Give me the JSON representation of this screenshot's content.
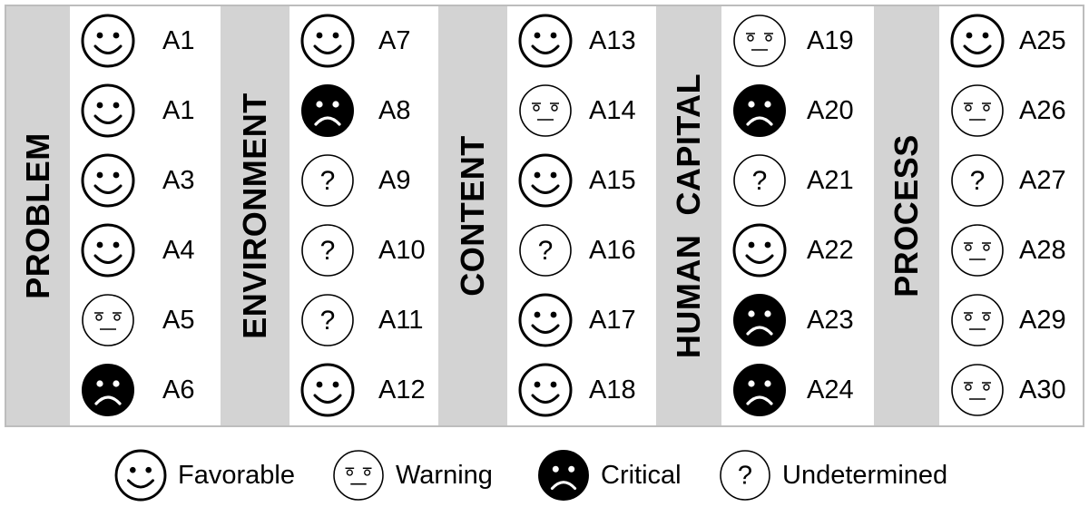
{
  "groups": [
    {
      "label": "PROBLEM",
      "items": [
        {
          "code": "A1",
          "status": "favorable"
        },
        {
          "code": "A1",
          "status": "favorable"
        },
        {
          "code": "A3",
          "status": "favorable"
        },
        {
          "code": "A4",
          "status": "favorable"
        },
        {
          "code": "A5",
          "status": "warning"
        },
        {
          "code": "A6",
          "status": "critical"
        }
      ]
    },
    {
      "label": "ENVIRONMENT",
      "items": [
        {
          "code": "A7",
          "status": "favorable"
        },
        {
          "code": "A8",
          "status": "critical"
        },
        {
          "code": "A9",
          "status": "undetermined"
        },
        {
          "code": "A10",
          "status": "undetermined"
        },
        {
          "code": "A11",
          "status": "undetermined"
        },
        {
          "code": "A12",
          "status": "favorable"
        }
      ]
    },
    {
      "label": "CONTENT",
      "items": [
        {
          "code": "A13",
          "status": "favorable"
        },
        {
          "code": "A14",
          "status": "warning"
        },
        {
          "code": "A15",
          "status": "favorable"
        },
        {
          "code": "A16",
          "status": "undetermined"
        },
        {
          "code": "A17",
          "status": "favorable"
        },
        {
          "code": "A18",
          "status": "favorable"
        }
      ]
    },
    {
      "label": "HUMAN  CAPITAL",
      "items": [
        {
          "code": "A19",
          "status": "warning"
        },
        {
          "code": "A20",
          "status": "critical"
        },
        {
          "code": "A21",
          "status": "undetermined"
        },
        {
          "code": "A22",
          "status": "favorable"
        },
        {
          "code": "A23",
          "status": "critical"
        },
        {
          "code": "A24",
          "status": "critical"
        }
      ]
    },
    {
      "label": "PROCESS",
      "items": [
        {
          "code": "A25",
          "status": "favorable"
        },
        {
          "code": "A26",
          "status": "warning"
        },
        {
          "code": "A27",
          "status": "undetermined"
        },
        {
          "code": "A28",
          "status": "warning"
        },
        {
          "code": "A29",
          "status": "warning"
        },
        {
          "code": "A30",
          "status": "warning"
        }
      ]
    }
  ],
  "legend": [
    {
      "status": "favorable",
      "label": "Favorable"
    },
    {
      "status": "warning",
      "label": "Warning"
    },
    {
      "status": "critical",
      "label": "Critical"
    },
    {
      "status": "undetermined",
      "label": "Undetermined"
    }
  ],
  "colors": {
    "label_band": "#d3d3d3",
    "frame": "#bdbdbd",
    "critical_fill": "#000000"
  }
}
